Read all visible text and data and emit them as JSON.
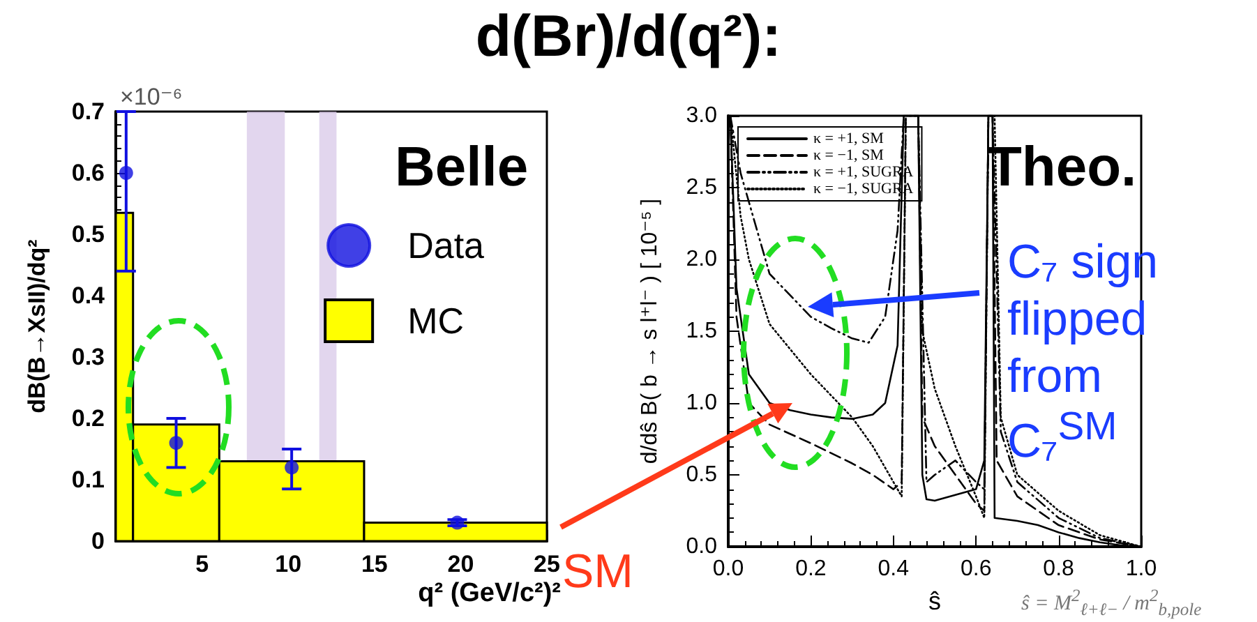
{
  "chart_data": [
    {
      "type": "histogram",
      "title": "d(Br)/d(q²):",
      "xlabel": "q² (GeV/c²)²",
      "ylabel": "dB(B→XsII)/dq²",
      "annotations": [
        "×10⁻⁶",
        "Belle"
      ],
      "xlim": [
        0,
        25
      ],
      "xticks": [
        5,
        10,
        15,
        20,
        25
      ],
      "ylim": [
        0,
        0.7
      ],
      "yticks": [
        0,
        0.1,
        0.2,
        0.3,
        0.4,
        0.5,
        0.6,
        0.7
      ],
      "grid": false,
      "legend": "right",
      "marker": "circle",
      "bands": [
        {
          "axis": "x",
          "from": 7.6,
          "to": 9.8,
          "color": "#d8c8e8"
        },
        {
          "axis": "x",
          "from": 11.8,
          "to": 12.8,
          "color": "#d8c8e8"
        }
      ],
      "series": [
        {
          "type": "scatter",
          "name": "Data",
          "color": "#1010e0",
          "x": [
            0.6,
            3.5,
            10.2,
            19.8
          ],
          "values": [
            0.6,
            0.16,
            0.12,
            0.03
          ],
          "errors": [
            [
              0.44,
              0.7
            ],
            [
              0.12,
              0.2
            ],
            [
              0.085,
              0.15
            ],
            [
              0.025,
              0.035
            ]
          ]
        },
        {
          "name": "MC",
          "color": "#ffff00",
          "bins": [
            0,
            1,
            6,
            14.4,
            25
          ],
          "values": [
            0.535,
            0.19,
            0.13,
            0.03
          ]
        }
      ]
    },
    {
      "type": "line",
      "xlabel": "ŝ",
      "ylabel": "d/dŝ B( b → s l⁺l⁻ ) [ 10⁻⁵ ]",
      "annotations": [
        "Theo.",
        "C₇ sign flipped from C₇$^{SM}$",
        "SM",
        "ŝ = M$^{2}$$_{ℓ+ℓ−}$ / m$^{2}$$_{b,pole}$"
      ],
      "xlim": [
        0,
        1
      ],
      "xticks": [
        {
          "value": 0,
          "label": "0.0"
        },
        0.2,
        0.4,
        0.6,
        0.8,
        {
          "value": 1,
          "label": "1.0"
        }
      ],
      "ylim": [
        0,
        3
      ],
      "yticks": [
        {
          "value": 0,
          "label": "0.0"
        },
        0.5,
        {
          "value": 1,
          "label": "1.0"
        },
        1.5,
        {
          "value": 2,
          "label": "2.0"
        },
        2.5,
        {
          "value": 3,
          "label": "3.0"
        }
      ],
      "grid": false,
      "legend": "top left",
      "marker": "none",
      "series": [
        {
          "name": "κ = +1, SM",
          "color": "#000000",
          "line_style": "solid",
          "x": [
            0.005,
            0.02,
            0.05,
            0.1,
            0.15,
            0.2,
            0.25,
            0.3,
            0.35,
            0.38,
            0.41,
            0.425,
            0.46,
            0.47,
            0.48,
            0.5,
            0.55,
            0.6,
            0.62,
            0.63,
            0.64,
            0.645,
            0.7,
            0.75,
            0.8,
            0.85,
            0.9,
            0.95,
            1.0
          ],
          "values": [
            3.0,
            1.8,
            1.2,
            1.0,
            0.95,
            0.92,
            0.9,
            0.89,
            0.92,
            1.0,
            1.4,
            3.0,
            3.0,
            0.5,
            0.33,
            0.32,
            0.36,
            0.4,
            0.6,
            3.0,
            3.0,
            0.2,
            0.18,
            0.15,
            0.1,
            0.06,
            0.03,
            0.01,
            0
          ]
        },
        {
          "name": "κ = −1, SM",
          "color": "#000000",
          "line_style": "dashed",
          "x": [
            0.005,
            0.02,
            0.05,
            0.1,
            0.2,
            0.3,
            0.35,
            0.4,
            0.42,
            0.43,
            0.46,
            0.47,
            0.5,
            0.55,
            0.6,
            0.62,
            0.63,
            0.64,
            0.65,
            0.7,
            0.75,
            0.8,
            0.9,
            1.0
          ],
          "values": [
            3.0,
            1.6,
            1.0,
            0.85,
            0.72,
            0.58,
            0.5,
            0.4,
            0.45,
            3.0,
            3.0,
            0.9,
            0.7,
            0.5,
            0.3,
            0.25,
            3.0,
            3.0,
            0.6,
            0.35,
            0.25,
            0.15,
            0.05,
            0
          ]
        },
        {
          "name": "κ = +1, SUGRA",
          "color": "#000000",
          "line_style": "dashdot",
          "x": [
            0.005,
            0.03,
            0.1,
            0.2,
            0.25,
            0.3,
            0.34,
            0.38,
            0.41,
            0.425,
            0.46,
            0.48,
            0.5,
            0.55,
            0.6,
            0.62,
            0.63,
            0.64,
            0.66,
            0.7,
            0.8,
            0.9,
            1.0
          ],
          "values": [
            3.0,
            2.6,
            1.9,
            1.6,
            1.52,
            1.45,
            1.42,
            1.6,
            2.2,
            3.0,
            3.0,
            0.45,
            0.5,
            0.6,
            0.45,
            0.4,
            3.0,
            3.0,
            0.8,
            0.45,
            0.2,
            0.06,
            0
          ]
        },
        {
          "name": "κ = −1, SUGRA",
          "color": "#000000",
          "line_style": "dotted",
          "x": [
            0.005,
            0.03,
            0.05,
            0.1,
            0.2,
            0.3,
            0.35,
            0.4,
            0.42,
            0.43,
            0.46,
            0.47,
            0.5,
            0.55,
            0.6,
            0.62,
            0.63,
            0.645,
            0.66,
            0.7,
            0.8,
            0.9,
            1.0
          ],
          "values": [
            3.0,
            2.3,
            2.0,
            1.55,
            1.2,
            0.9,
            0.7,
            0.45,
            0.35,
            3.0,
            3.0,
            1.5,
            1.1,
            0.7,
            0.35,
            0.2,
            3.0,
            3.0,
            0.9,
            0.5,
            0.25,
            0.08,
            0
          ]
        }
      ]
    }
  ]
}
